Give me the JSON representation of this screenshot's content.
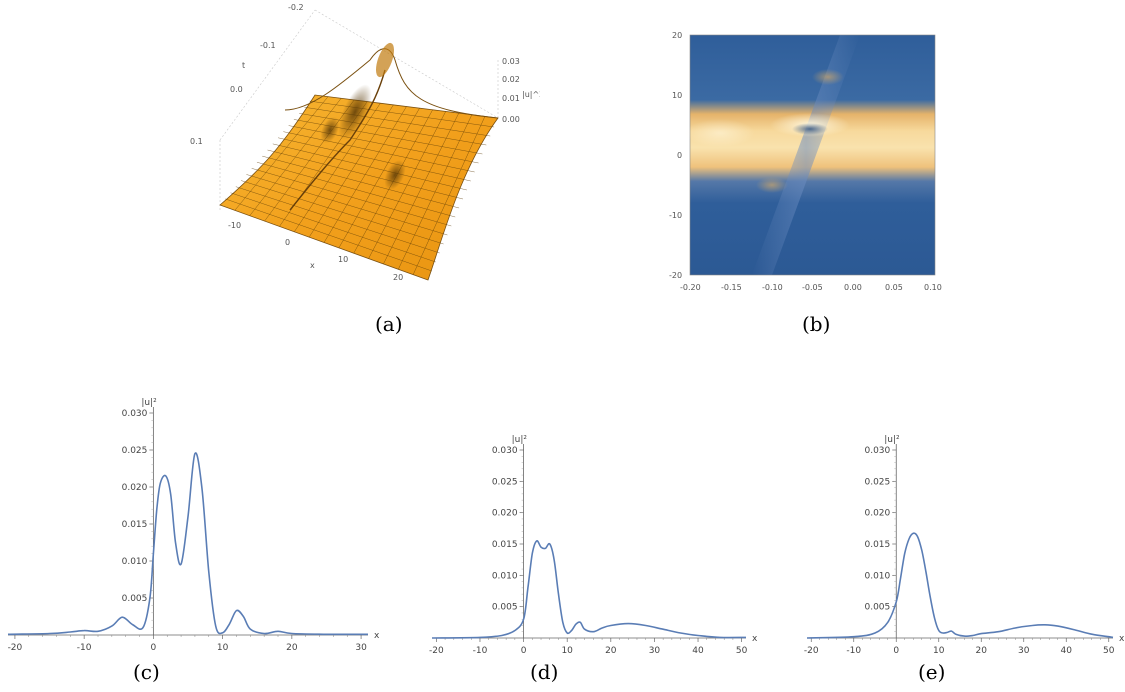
{
  "captions": {
    "a": "(a)",
    "b": "(b)",
    "c": "(c)",
    "d": "(d)",
    "e": "(e)"
  },
  "colors": {
    "curve": "#5a7db5",
    "surface": "#f5a623",
    "surface_dark": "#8a5a10",
    "density_low": "#2f5e9a",
    "density_high": "#fff4cc"
  },
  "chart_data": [
    {
      "id": "a",
      "type": "surface",
      "title": "",
      "axis_labels": {
        "x": "x",
        "t": "t",
        "z": "|u|^2"
      },
      "x_ticks": [
        "-10",
        "0",
        "10",
        "20"
      ],
      "t_ticks": [
        "-0.2",
        "-0.1",
        "0.0",
        "0.1"
      ],
      "z_ticks": [
        "0.00",
        "0.01",
        "0.02",
        "0.03"
      ]
    },
    {
      "id": "b",
      "type": "heatmap",
      "title": "",
      "x_ticks": [
        "-0.20",
        "-0.15",
        "-0.10",
        "-0.05",
        "0.00",
        "0.05",
        "0.10"
      ],
      "y_ticks": [
        "20",
        "10",
        "0",
        "-10",
        "-20"
      ],
      "xlim": [
        -0.2,
        0.1
      ],
      "ylim": [
        -20,
        20
      ]
    },
    {
      "id": "c",
      "type": "line",
      "title": "",
      "xlabel": "x",
      "ylabel": "|u|²",
      "xlim": [
        -21,
        31
      ],
      "ylim": [
        0,
        0.03
      ],
      "x_ticks": [
        -20,
        -10,
        0,
        10,
        20,
        30
      ],
      "y_ticks": [
        "0.005",
        "0.010",
        "0.015",
        "0.020",
        "0.025",
        "0.030"
      ],
      "x": [
        -21,
        -15,
        -12,
        -10,
        -8,
        -6,
        -4.5,
        -3,
        -1.5,
        -0.5,
        0,
        0.5,
        1,
        1.8,
        2.5,
        3.2,
        4,
        5,
        6,
        7,
        8,
        9,
        10,
        11,
        12,
        13,
        14,
        16,
        18,
        20,
        25,
        31
      ],
      "y": [
        0.0001,
        0.0002,
        0.0004,
        0.0006,
        0.0005,
        0.0012,
        0.0024,
        0.0014,
        0.001,
        0.005,
        0.011,
        0.017,
        0.0205,
        0.0215,
        0.019,
        0.0125,
        0.0096,
        0.016,
        0.0245,
        0.02,
        0.0085,
        0.0012,
        0.0003,
        0.0015,
        0.0033,
        0.0025,
        0.0008,
        0.0002,
        0.0005,
        0.0002,
        0.0001,
        0.0001
      ]
    },
    {
      "id": "d",
      "type": "line",
      "title": "",
      "xlabel": "x",
      "ylabel": "|u|²",
      "xlim": [
        -21,
        51
      ],
      "ylim": [
        0,
        0.03
      ],
      "x_ticks": [
        -20,
        -10,
        0,
        10,
        20,
        30,
        40,
        50
      ],
      "y_ticks": [
        "0.005",
        "0.010",
        "0.015",
        "0.020",
        "0.025",
        "0.030"
      ],
      "x": [
        -21,
        -10,
        -5,
        -2,
        0,
        1,
        2,
        3,
        4,
        5,
        6,
        7,
        8,
        9,
        10,
        11,
        12,
        13,
        14,
        16,
        18,
        20,
        24,
        28,
        32,
        36,
        40,
        45,
        51
      ],
      "y": [
        0,
        0.0001,
        0.0004,
        0.0012,
        0.003,
        0.008,
        0.0135,
        0.0155,
        0.0145,
        0.0143,
        0.015,
        0.0125,
        0.007,
        0.0025,
        0.0008,
        0.0012,
        0.0022,
        0.0025,
        0.0014,
        0.001,
        0.0016,
        0.002,
        0.0023,
        0.002,
        0.0014,
        0.0008,
        0.0004,
        0.0001,
        0.0001
      ]
    },
    {
      "id": "e",
      "type": "line",
      "title": "",
      "xlabel": "x",
      "ylabel": "|u|²",
      "xlim": [
        -21,
        51
      ],
      "ylim": [
        0,
        0.03
      ],
      "x_ticks": [
        -20,
        -10,
        0,
        10,
        20,
        30,
        40,
        50
      ],
      "y_ticks": [
        "0.005",
        "0.010",
        "0.015",
        "0.020",
        "0.025",
        "0.030"
      ],
      "x": [
        -21,
        -10,
        -5,
        -2,
        0,
        1,
        2,
        3,
        4,
        5,
        6,
        7,
        8,
        9,
        10,
        11,
        12,
        13,
        14,
        16,
        18,
        20,
        24,
        28,
        32,
        35,
        38,
        42,
        46,
        50,
        51
      ],
      "y": [
        0,
        0.0002,
        0.0008,
        0.0025,
        0.0058,
        0.0095,
        0.0135,
        0.0158,
        0.0167,
        0.0162,
        0.014,
        0.0105,
        0.0065,
        0.0032,
        0.0012,
        0.0008,
        0.0009,
        0.0011,
        0.0006,
        0.0003,
        0.0004,
        0.0007,
        0.001,
        0.0016,
        0.002,
        0.0021,
        0.0019,
        0.0013,
        0.0006,
        0.0002,
        0.0001
      ]
    }
  ]
}
